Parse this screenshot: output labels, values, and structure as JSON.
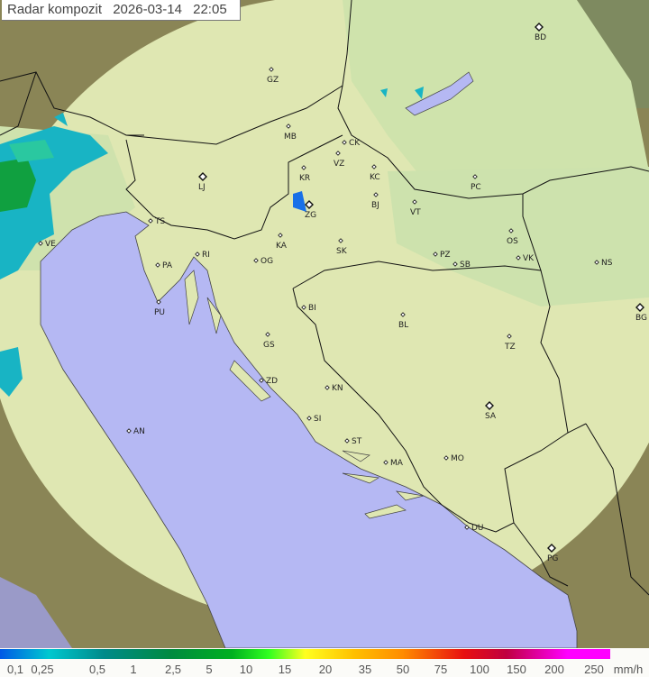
{
  "title": {
    "label": "Radar kompozit",
    "date": "2026-03-14",
    "time": "22:05"
  },
  "legend": {
    "ticks": [
      "0,1",
      "0,25",
      "0,5",
      "1",
      "2,5",
      "5",
      "10",
      "15",
      "20",
      "35",
      "50",
      "75",
      "100",
      "150",
      "200",
      "250"
    ],
    "unit": "mm/h"
  },
  "cities": [
    "BD",
    "GZ",
    "MB",
    "CK",
    "VZ",
    "KR",
    "KC",
    "LJ",
    "PC",
    "BJ",
    "VT",
    "ZG",
    "TS",
    "OS",
    "RI",
    "KA",
    "SK",
    "PA",
    "OG",
    "PZ",
    "SB",
    "VK",
    "NS",
    "PU",
    "BG",
    "BI",
    "BL",
    "TZ",
    "GS",
    "ZD",
    "KN",
    "SA",
    "AN",
    "SI",
    "ST",
    "MO",
    "MA",
    "DU",
    "PG",
    "VE"
  ],
  "colors": {
    "sea": "#b4b8f4",
    "coverage": "#dfe8b4",
    "outside": "#8c8450",
    "rain_light": "#18b0c0",
    "rain_moderate": "#10a040"
  }
}
